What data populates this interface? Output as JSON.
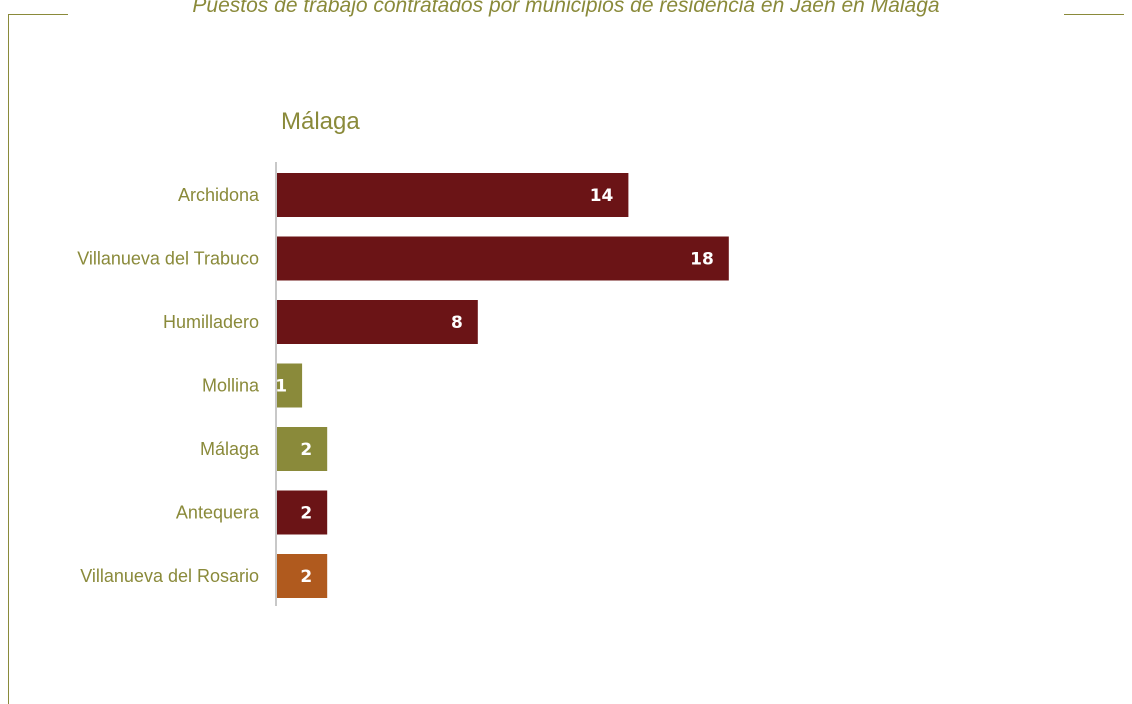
{
  "header": {
    "title": "Puestos de trabajo contratados por municipios de residencia en Jaén en Málaga"
  },
  "chart_data": {
    "type": "bar",
    "orientation": "horizontal",
    "title": "Málaga",
    "categories": [
      "Archidona",
      "Villanueva del Trabuco",
      "Humilladero",
      "Mollina",
      "Málaga",
      "Antequera",
      "Villanueva del Rosario"
    ],
    "values": [
      14,
      18,
      8,
      1,
      2,
      2,
      2
    ],
    "bar_colors": [
      "#6b1416",
      "#6b1416",
      "#6b1416",
      "#8a8a3a",
      "#8a8a3a",
      "#6b1416",
      "#b05a1e"
    ],
    "data_labels": true,
    "grid": false
  }
}
